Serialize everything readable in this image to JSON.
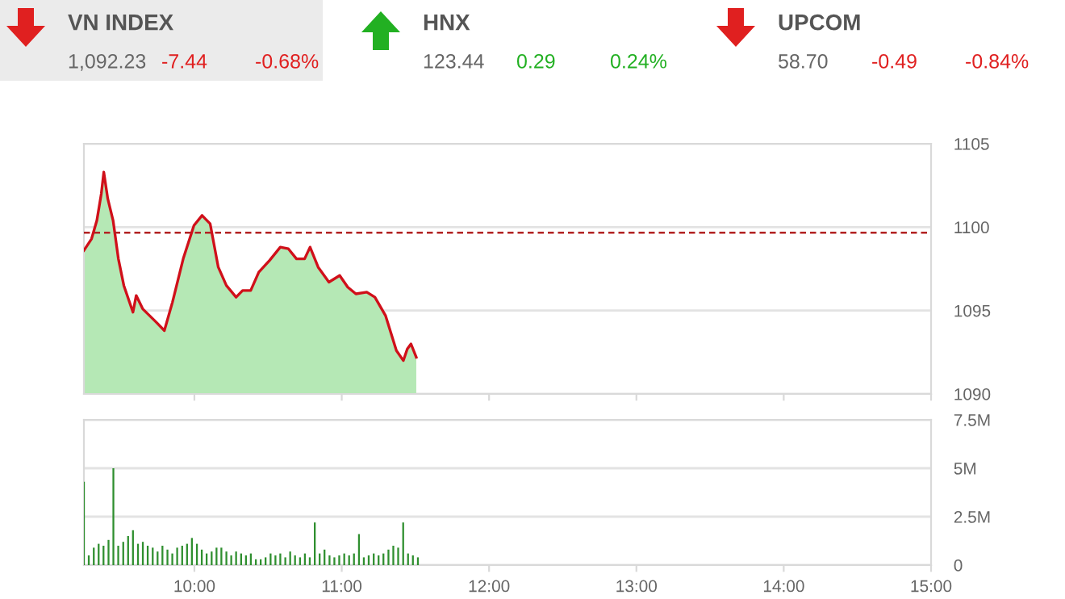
{
  "chart_data": [
    {
      "type": "other",
      "title": "VN INDEX",
      "annotations": [
        "1,092.23",
        "-7.44",
        "-0.68%"
      ],
      "color": "#e02020"
    },
    {
      "type": "other",
      "title": "HNX",
      "annotations": [
        "123.44",
        "0.29",
        "0.24%"
      ],
      "color": "#22b022"
    },
    {
      "type": "other",
      "title": "UPCOM",
      "annotations": [
        "58.70",
        "-0.49",
        "-0.84%"
      ],
      "color": "#e02020"
    },
    {
      "type": "area",
      "x": [
        9.25,
        9.302,
        9.338,
        9.368,
        9.385,
        9.412,
        9.448,
        9.484,
        9.521,
        9.583,
        9.605,
        9.649,
        9.741,
        9.796,
        9.851,
        9.924,
        9.997,
        10.052,
        10.107,
        10.162,
        10.217,
        10.283,
        10.327,
        10.382,
        10.437,
        10.51,
        10.583,
        10.638,
        10.693,
        10.748,
        10.785,
        10.84,
        10.913,
        10.986,
        11.041,
        11.096,
        11.17,
        11.225,
        11.297,
        11.371,
        11.418,
        11.445,
        11.47,
        11.506
      ],
      "series": [
        {
          "type": "area",
          "color": "#b5e8b5",
          "values": [
            1098.6,
            1099.3,
            1100.4,
            1102.0,
            1103.3,
            1101.7,
            1100.4,
            1098.1,
            1096.5,
            1094.9,
            1095.9,
            1095.1,
            1094.3,
            1093.8,
            1095.5,
            1098.1,
            1100.1,
            1100.7,
            1100.2,
            1097.6,
            1096.5,
            1095.8,
            1096.2,
            1096.2,
            1097.3,
            1098.0,
            1098.8,
            1098.7,
            1098.1,
            1098.1,
            1098.8,
            1097.6,
            1096.7,
            1097.1,
            1096.4,
            1096.0,
            1096.1,
            1095.8,
            1094.7,
            1092.6,
            1092.0,
            1092.7,
            1093.0,
            1092.2
          ]
        },
        {
          "type": "line",
          "color": "#d0101a",
          "values": [
            1098.6,
            1099.3,
            1100.4,
            1102.0,
            1103.3,
            1101.7,
            1100.4,
            1098.1,
            1096.5,
            1094.9,
            1095.9,
            1095.1,
            1094.3,
            1093.8,
            1095.5,
            1098.1,
            1100.1,
            1100.7,
            1100.2,
            1097.6,
            1096.5,
            1095.8,
            1096.2,
            1096.2,
            1097.3,
            1098.0,
            1098.8,
            1098.7,
            1098.1,
            1098.1,
            1098.8,
            1097.6,
            1096.7,
            1097.1,
            1096.4,
            1096.0,
            1096.1,
            1095.8,
            1094.7,
            1092.6,
            1092.0,
            1092.7,
            1093.0,
            1092.2
          ]
        }
      ],
      "xlim": [
        9.25,
        15
      ],
      "xticks": [
        {
          "value": 10,
          "label": null
        },
        {
          "value": 11,
          "label": null
        },
        {
          "value": 12,
          "label": null
        },
        {
          "value": 13,
          "label": null
        },
        {
          "value": 14,
          "label": null
        },
        {
          "value": 15,
          "label": null
        }
      ],
      "ylim": [
        1090,
        1105
      ],
      "yticks": [
        1090,
        1095,
        1100,
        1105
      ],
      "ref_lines": [
        {
          "axis": "y",
          "value": 1099.67,
          "color": "#b22222",
          "line_style": "dashed"
        }
      ],
      "grid": "y",
      "tick_labels": "y"
    },
    {
      "type": "bar",
      "x": [
        9.25,
        9.283,
        9.317,
        9.35,
        9.383,
        9.417,
        9.45,
        9.483,
        9.517,
        9.55,
        9.583,
        9.617,
        9.65,
        9.683,
        9.717,
        9.75,
        9.783,
        9.817,
        9.85,
        9.883,
        9.917,
        9.95,
        9.983,
        10.017,
        10.05,
        10.083,
        10.117,
        10.15,
        10.183,
        10.217,
        10.25,
        10.283,
        10.317,
        10.35,
        10.383,
        10.417,
        10.45,
        10.483,
        10.517,
        10.55,
        10.583,
        10.617,
        10.65,
        10.683,
        10.717,
        10.75,
        10.783,
        10.817,
        10.85,
        10.883,
        10.917,
        10.95,
        10.983,
        11.017,
        11.05,
        11.083,
        11.117,
        11.15,
        11.183,
        11.217,
        11.25,
        11.283,
        11.317,
        11.35,
        11.383,
        11.417,
        11.45,
        11.483,
        11.517
      ],
      "values": [
        4.3,
        0.5,
        0.9,
        1.1,
        1.0,
        1.3,
        5.0,
        1.0,
        1.2,
        1.5,
        1.8,
        1.1,
        1.2,
        1.0,
        0.9,
        0.7,
        1.0,
        0.8,
        0.6,
        0.9,
        1.0,
        1.1,
        1.4,
        1.1,
        0.8,
        0.6,
        0.7,
        0.9,
        0.9,
        0.7,
        0.5,
        0.7,
        0.6,
        0.5,
        0.6,
        0.3,
        0.3,
        0.4,
        0.6,
        0.5,
        0.6,
        0.4,
        0.7,
        0.5,
        0.4,
        0.6,
        0.4,
        2.2,
        0.6,
        0.8,
        0.5,
        0.4,
        0.5,
        0.6,
        0.5,
        0.6,
        1.6,
        0.4,
        0.5,
        0.6,
        0.5,
        0.6,
        0.8,
        1.0,
        0.9,
        2.2,
        0.6,
        0.5,
        0.4
      ],
      "color": "#2f8f2f",
      "xlim": [
        9.25,
        15
      ],
      "xticks": [
        {
          "value": 10,
          "label": "10:00"
        },
        {
          "value": 11,
          "label": "11:00"
        },
        {
          "value": 12,
          "label": "12:00"
        },
        {
          "value": 13,
          "label": "13:00"
        },
        {
          "value": 14,
          "label": "14:00"
        },
        {
          "value": 15,
          "label": "15:00"
        }
      ],
      "ylim": [
        0,
        7.5
      ],
      "yticks": [
        0,
        {
          "value": 2.5,
          "label": "2.5M"
        },
        {
          "value": 5,
          "label": "5M"
        },
        {
          "value": 7.5,
          "label": "7.5M"
        }
      ],
      "grid": "y"
    }
  ]
}
